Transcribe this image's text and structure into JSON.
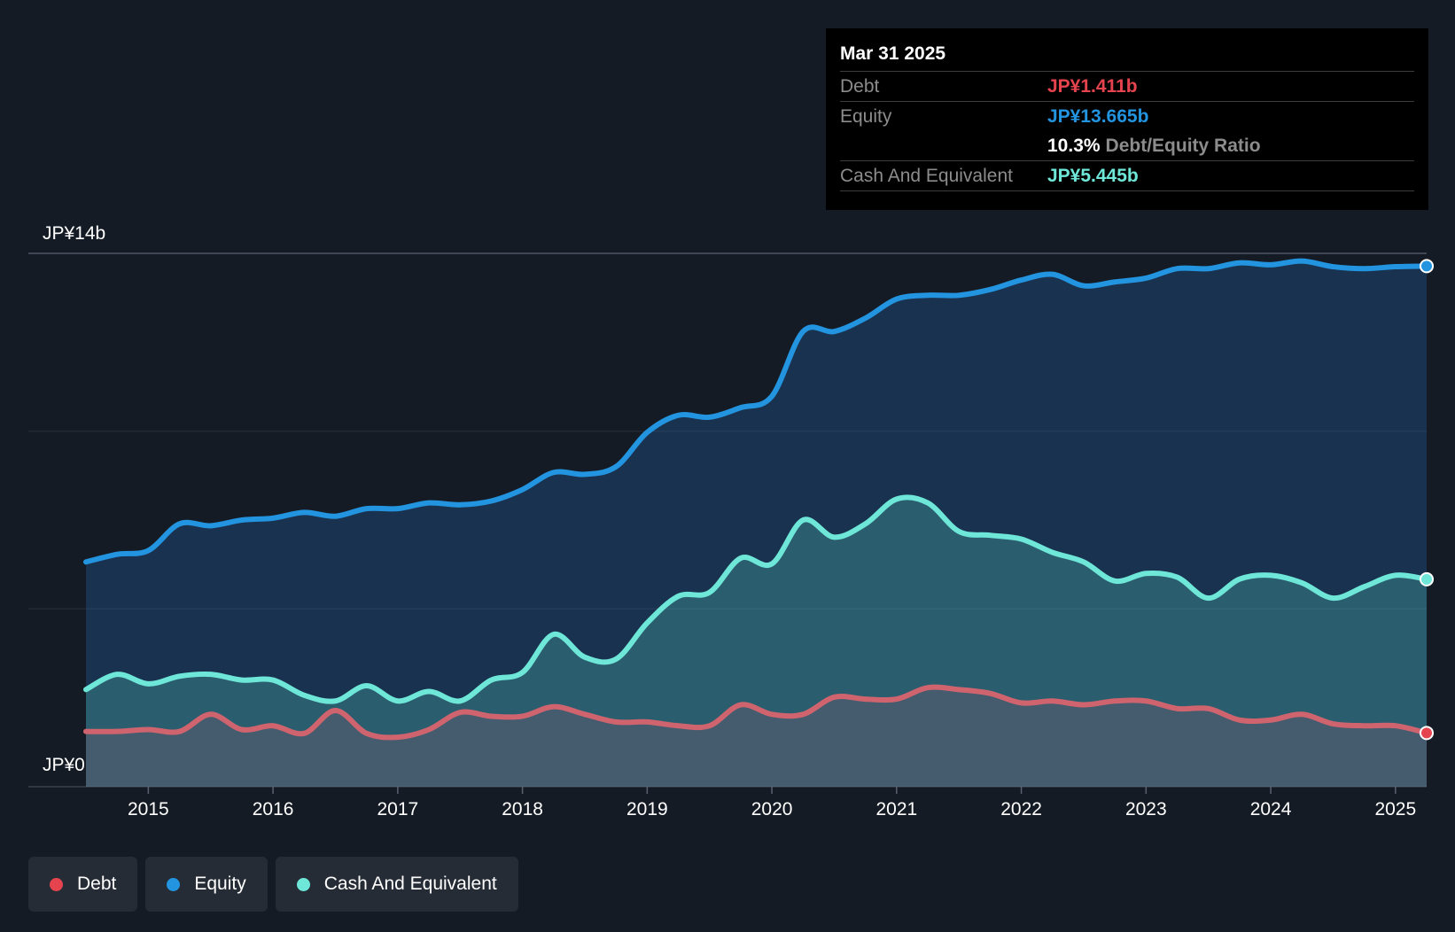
{
  "tooltip": {
    "date": "Mar 31 2025",
    "debt_label": "Debt",
    "debt_value": "JP¥1.411b",
    "equity_label": "Equity",
    "equity_value": "JP¥13.665b",
    "ratio_value": "10.3%",
    "ratio_label": "Debt/Equity Ratio",
    "cash_label": "Cash And Equivalent",
    "cash_value": "JP¥5.445b"
  },
  "legend": [
    {
      "label": "Debt",
      "color": "#e5444f"
    },
    {
      "label": "Equity",
      "color": "#2394df"
    },
    {
      "label": "Cash And Equivalent",
      "color": "#6ee7d9"
    }
  ],
  "chart_data": {
    "type": "area",
    "title": "",
    "y_top_label": "JP¥14b",
    "y_bottom_label": "JP¥0",
    "ylim": [
      0,
      14
    ],
    "xlim": [
      2014.0,
      2025.25
    ],
    "gridlines": [
      0,
      4.67,
      9.33,
      14
    ],
    "x_ticks": [
      "2015",
      "2016",
      "2017",
      "2018",
      "2019",
      "2020",
      "2021",
      "2022",
      "2023",
      "2024",
      "2025"
    ],
    "x_tick_values": [
      2015,
      2016,
      2017,
      2018,
      2019,
      2020,
      2021,
      2022,
      2023,
      2024,
      2025
    ],
    "colors": {
      "debt": "#e5444f",
      "equity": "#2394df",
      "cash": "#6ee7d9"
    },
    "series": [
      {
        "name": "Equity",
        "points": [
          [
            2014.5,
            5.9
          ],
          [
            2014.75,
            6.1
          ],
          [
            2015.0,
            6.2
          ],
          [
            2015.25,
            6.9
          ],
          [
            2015.5,
            6.85
          ],
          [
            2015.75,
            7.0
          ],
          [
            2016.0,
            7.05
          ],
          [
            2016.25,
            7.2
          ],
          [
            2016.5,
            7.1
          ],
          [
            2016.75,
            7.3
          ],
          [
            2017.0,
            7.3
          ],
          [
            2017.25,
            7.45
          ],
          [
            2017.5,
            7.4
          ],
          [
            2017.75,
            7.5
          ],
          [
            2018.0,
            7.8
          ],
          [
            2018.25,
            8.25
          ],
          [
            2018.5,
            8.2
          ],
          [
            2018.75,
            8.4
          ],
          [
            2019.0,
            9.3
          ],
          [
            2019.25,
            9.75
          ],
          [
            2019.5,
            9.7
          ],
          [
            2019.75,
            9.95
          ],
          [
            2020.0,
            10.25
          ],
          [
            2020.25,
            11.95
          ],
          [
            2020.5,
            11.95
          ],
          [
            2020.75,
            12.3
          ],
          [
            2021.0,
            12.8
          ],
          [
            2021.25,
            12.9
          ],
          [
            2021.5,
            12.9
          ],
          [
            2021.75,
            13.05
          ],
          [
            2022.0,
            13.3
          ],
          [
            2022.25,
            13.45
          ],
          [
            2022.5,
            13.15
          ],
          [
            2022.75,
            13.25
          ],
          [
            2023.0,
            13.35
          ],
          [
            2023.25,
            13.6
          ],
          [
            2023.5,
            13.6
          ],
          [
            2023.75,
            13.75
          ],
          [
            2024.0,
            13.7
          ],
          [
            2024.25,
            13.8
          ],
          [
            2024.5,
            13.65
          ],
          [
            2024.75,
            13.6
          ],
          [
            2025.0,
            13.65
          ],
          [
            2025.25,
            13.665
          ]
        ]
      },
      {
        "name": "Cash And Equivalent",
        "points": [
          [
            2014.5,
            2.55
          ],
          [
            2014.75,
            2.95
          ],
          [
            2015.0,
            2.7
          ],
          [
            2015.25,
            2.9
          ],
          [
            2015.5,
            2.95
          ],
          [
            2015.75,
            2.8
          ],
          [
            2016.0,
            2.8
          ],
          [
            2016.25,
            2.4
          ],
          [
            2016.5,
            2.25
          ],
          [
            2016.75,
            2.65
          ],
          [
            2017.0,
            2.25
          ],
          [
            2017.25,
            2.5
          ],
          [
            2017.5,
            2.25
          ],
          [
            2017.75,
            2.8
          ],
          [
            2018.0,
            3.0
          ],
          [
            2018.25,
            4.0
          ],
          [
            2018.5,
            3.4
          ],
          [
            2018.75,
            3.35
          ],
          [
            2019.0,
            4.3
          ],
          [
            2019.25,
            5.0
          ],
          [
            2019.5,
            5.1
          ],
          [
            2019.75,
            6.0
          ],
          [
            2020.0,
            5.85
          ],
          [
            2020.25,
            7.0
          ],
          [
            2020.5,
            6.55
          ],
          [
            2020.75,
            6.9
          ],
          [
            2021.0,
            7.55
          ],
          [
            2021.25,
            7.45
          ],
          [
            2021.5,
            6.7
          ],
          [
            2021.75,
            6.6
          ],
          [
            2022.0,
            6.5
          ],
          [
            2022.25,
            6.15
          ],
          [
            2022.5,
            5.9
          ],
          [
            2022.75,
            5.4
          ],
          [
            2023.0,
            5.6
          ],
          [
            2023.25,
            5.5
          ],
          [
            2023.5,
            4.95
          ],
          [
            2023.75,
            5.45
          ],
          [
            2024.0,
            5.55
          ],
          [
            2024.25,
            5.35
          ],
          [
            2024.5,
            4.95
          ],
          [
            2024.75,
            5.25
          ],
          [
            2025.0,
            5.55
          ],
          [
            2025.25,
            5.445
          ]
        ]
      },
      {
        "name": "Debt",
        "points": [
          [
            2014.5,
            1.45
          ],
          [
            2014.75,
            1.45
          ],
          [
            2015.0,
            1.5
          ],
          [
            2015.25,
            1.45
          ],
          [
            2015.5,
            1.9
          ],
          [
            2015.75,
            1.5
          ],
          [
            2016.0,
            1.6
          ],
          [
            2016.25,
            1.4
          ],
          [
            2016.5,
            2.0
          ],
          [
            2016.75,
            1.4
          ],
          [
            2017.0,
            1.3
          ],
          [
            2017.25,
            1.5
          ],
          [
            2017.5,
            1.95
          ],
          [
            2017.75,
            1.85
          ],
          [
            2018.0,
            1.85
          ],
          [
            2018.25,
            2.1
          ],
          [
            2018.5,
            1.9
          ],
          [
            2018.75,
            1.7
          ],
          [
            2019.0,
            1.7
          ],
          [
            2019.25,
            1.6
          ],
          [
            2019.5,
            1.6
          ],
          [
            2019.75,
            2.15
          ],
          [
            2020.0,
            1.9
          ],
          [
            2020.25,
            1.9
          ],
          [
            2020.5,
            2.35
          ],
          [
            2020.75,
            2.3
          ],
          [
            2021.0,
            2.3
          ],
          [
            2021.25,
            2.6
          ],
          [
            2021.5,
            2.55
          ],
          [
            2021.75,
            2.45
          ],
          [
            2022.0,
            2.2
          ],
          [
            2022.25,
            2.25
          ],
          [
            2022.5,
            2.15
          ],
          [
            2022.75,
            2.25
          ],
          [
            2023.0,
            2.25
          ],
          [
            2023.25,
            2.05
          ],
          [
            2023.5,
            2.05
          ],
          [
            2023.75,
            1.75
          ],
          [
            2024.0,
            1.75
          ],
          [
            2024.25,
            1.9
          ],
          [
            2024.5,
            1.65
          ],
          [
            2024.75,
            1.6
          ],
          [
            2025.0,
            1.6
          ],
          [
            2025.25,
            1.411
          ]
        ]
      }
    ]
  }
}
